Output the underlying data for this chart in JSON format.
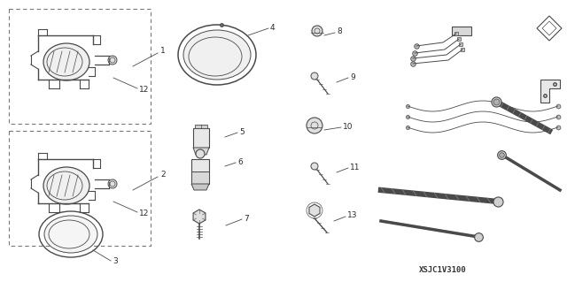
{
  "bg_color": "#ffffff",
  "line_color": "#4a4a4a",
  "text_color": "#2a2a2a",
  "diagram_code": "XSJC1V3100",
  "figsize": [
    6.4,
    3.19
  ],
  "dpi": 100
}
